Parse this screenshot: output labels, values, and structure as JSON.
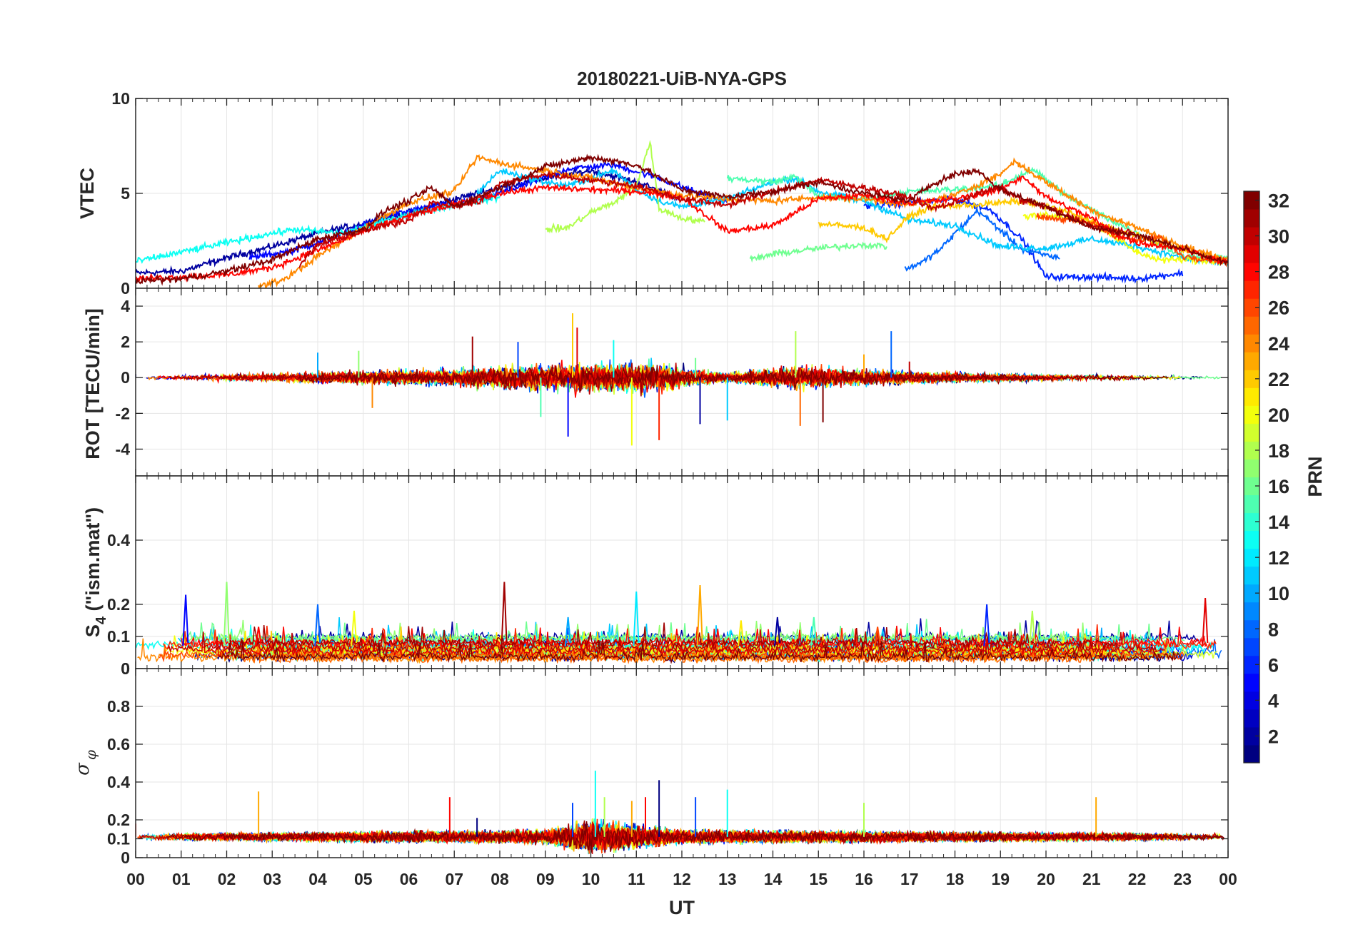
{
  "chart_data": {
    "type": "line",
    "title": "20180221-UiB-NYA-GPS",
    "xlabel": "UT",
    "x_unit": "hour",
    "xlim": [
      0,
      24
    ],
    "x_ticks": [
      0,
      1,
      2,
      3,
      4,
      5,
      6,
      7,
      8,
      9,
      10,
      11,
      12,
      13,
      14,
      15,
      16,
      17,
      18,
      19,
      20,
      21,
      22,
      23,
      24
    ],
    "x_tick_labels": [
      "00",
      "01",
      "02",
      "03",
      "04",
      "05",
      "06",
      "07",
      "08",
      "09",
      "10",
      "11",
      "12",
      "13",
      "14",
      "15",
      "16",
      "17",
      "18",
      "19",
      "20",
      "21",
      "22",
      "23",
      "00"
    ],
    "grid": true,
    "colorbar": {
      "label": "PRN",
      "range": [
        1,
        32
      ],
      "ticks": [
        2,
        4,
        6,
        8,
        10,
        12,
        14,
        16,
        18,
        20,
        22,
        24,
        26,
        28,
        30,
        32
      ],
      "tick_labels": [
        "2",
        "4",
        "6",
        "8",
        "10",
        "12",
        "14",
        "16",
        "18",
        "20",
        "22",
        "24",
        "26",
        "28",
        "30",
        "32"
      ],
      "colormap": "jet",
      "colors": [
        "#00008f",
        "#0000ff",
        "#0080ff",
        "#00ffff",
        "#80ff80",
        "#ffff00",
        "#ff8000",
        "#ff0000",
        "#800000"
      ],
      "position": "right"
    },
    "panels": [
      {
        "name": "vtec",
        "ylabel": "VTEC",
        "ylim": [
          0,
          10
        ],
        "yticks": [
          0,
          5,
          10
        ],
        "ytick_labels": [
          "0",
          "5",
          "10"
        ],
        "series": [
          {
            "prn": 2,
            "x": [
              0.0,
              1.0,
              2.0,
              3.0,
              4.0,
              5.0,
              6.0,
              7.0,
              8.0,
              9.0,
              10.0,
              11.0,
              12.0
            ],
            "y": [
              0.8,
              0.9,
              1.6,
              2.2,
              2.9,
              3.4,
              4.0,
              4.7,
              5.3,
              5.8,
              6.2,
              5.6,
              4.7
            ]
          },
          {
            "prn": 5,
            "x": [
              2.5,
              3.5,
              4.5,
              5.5,
              6.5,
              7.5,
              8.5,
              9.5,
              10.5,
              11.5,
              12.5,
              13.0
            ],
            "y": [
              1.6,
              2.0,
              2.8,
              3.8,
              4.3,
              4.6,
              5.4,
              6.3,
              6.5,
              5.8,
              4.9,
              4.6
            ]
          },
          {
            "prn": 6,
            "x": [
              16.0,
              17.0,
              18.0,
              18.8,
              19.5,
              20.0,
              21.0,
              22.0,
              23.0
            ],
            "y": [
              4.3,
              4.5,
              4.7,
              4.1,
              2.5,
              0.6,
              0.6,
              0.5,
              0.8
            ]
          },
          {
            "prn": 8,
            "x": [
              16.9,
              17.3,
              17.7,
              18.0,
              18.5,
              19.5,
              20.3
            ],
            "y": [
              1.0,
              1.4,
              2.1,
              2.9,
              4.1,
              2.0,
              1.6
            ]
          },
          {
            "prn": 11,
            "x": [
              7.5,
              8.0,
              8.5,
              9.0,
              9.5,
              10.0,
              10.5,
              11.0,
              11.5,
              12.0,
              13.0,
              14.0,
              14.5,
              15.0,
              16.0,
              17.0,
              18.0,
              19.0,
              20.0,
              21.0,
              22.0,
              23.0,
              24.0
            ],
            "y": [
              5.0,
              6.2,
              5.9,
              5.6,
              5.4,
              5.8,
              6.2,
              5.2,
              4.6,
              4.3,
              4.7,
              5.6,
              5.8,
              5.1,
              4.6,
              3.6,
              3.3,
              2.2,
              2.1,
              2.6,
              2.2,
              1.6,
              1.3
            ]
          },
          {
            "prn": 13,
            "x": [
              0.0,
              1.0,
              2.0,
              3.0,
              3.5,
              4.5,
              5.0,
              6.0,
              7.0,
              8.0
            ],
            "y": [
              1.4,
              1.9,
              2.4,
              2.9,
              3.1,
              2.9,
              3.2,
              3.9,
              4.4,
              4.8
            ]
          },
          {
            "prn": 15,
            "x": [
              13.0,
              14.0,
              14.5,
              15.0,
              16.0,
              17.0,
              18.0,
              19.0,
              19.7,
              20.5,
              21.5,
              23.0,
              24.0
            ],
            "y": [
              5.8,
              5.6,
              5.9,
              4.8,
              4.7,
              5.1,
              5.2,
              5.4,
              6.3,
              4.8,
              3.5,
              1.7,
              1.6
            ]
          },
          {
            "prn": 16,
            "x": [
              13.5,
              14.0,
              15.0,
              16.0,
              16.5
            ],
            "y": [
              1.5,
              1.8,
              2.1,
              2.3,
              2.2
            ]
          },
          {
            "prn": 18,
            "x": [
              9.0,
              9.5,
              10.0,
              10.5,
              11.0,
              11.3,
              11.5,
              12.0,
              12.5
            ],
            "y": [
              3.1,
              3.2,
              4.0,
              4.5,
              5.4,
              7.7,
              4.2,
              3.7,
              3.5
            ]
          },
          {
            "prn": 20,
            "x": [
              19.5,
              20.0,
              21.0,
              22.0,
              22.5,
              23.0,
              24.0
            ],
            "y": [
              3.8,
              3.9,
              3.5,
              1.9,
              1.5,
              1.5,
              1.4
            ]
          },
          {
            "prn": 22,
            "x": [
              15.0,
              16.0,
              16.5,
              17.0,
              17.5,
              18.5,
              19.5,
              20.5,
              21.5,
              22.5,
              23.5,
              24.0
            ],
            "y": [
              3.4,
              3.2,
              2.6,
              3.8,
              4.3,
              4.4,
              4.6,
              4.0,
              3.1,
              2.4,
              1.7,
              1.4
            ]
          },
          {
            "prn": 24,
            "x": [
              2.7,
              3.2,
              3.6,
              4.0,
              4.5,
              5.0,
              6.0,
              7.0,
              7.5,
              8.0,
              9.0,
              10.0,
              11.0,
              12.0,
              13.0,
              14.0,
              15.0,
              16.0,
              17.0,
              18.0,
              19.0,
              19.3,
              20.0,
              21.0,
              22.0,
              23.0,
              24.0
            ],
            "y": [
              0.1,
              0.4,
              1.0,
              1.7,
              2.4,
              3.2,
              4.5,
              5.1,
              6.9,
              6.6,
              6.2,
              5.8,
              5.3,
              4.9,
              4.7,
              4.6,
              4.8,
              4.7,
              4.4,
              4.9,
              6.0,
              6.7,
              5.6,
              4.1,
              3.2,
              2.2,
              1.5
            ]
          },
          {
            "prn": 26,
            "x": [
              19.8,
              20.5,
              21.0,
              21.5,
              22.0,
              22.5,
              23.0,
              24.0
            ],
            "y": [
              3.8,
              3.6,
              3.4,
              2.8,
              2.5,
              2.7,
              1.7,
              1.4
            ]
          },
          {
            "prn": 28,
            "x": [
              0.0,
              1.0,
              2.0,
              3.0,
              4.0,
              5.0,
              6.0,
              7.0,
              8.0,
              9.0,
              10.0,
              11.0,
              12.0,
              13.0,
              14.0,
              15.0,
              16.0,
              17.0,
              18.0,
              19.0,
              19.5,
              20.0,
              21.0,
              21.5,
              22.0,
              23.0,
              24.0
            ],
            "y": [
              0.5,
              0.6,
              0.7,
              1.1,
              2.0,
              3.0,
              3.8,
              4.4,
              5.0,
              5.3,
              5.2,
              5.1,
              4.8,
              3.0,
              3.3,
              4.7,
              4.9,
              4.5,
              4.7,
              5.2,
              5.9,
              4.8,
              3.7,
              2.9,
              2.4,
              2.1,
              1.3
            ]
          },
          {
            "prn": 30,
            "x": [
              3.6,
              4.0,
              5.0,
              6.0,
              6.5,
              7.0,
              7.5,
              8.0,
              9.0,
              10.0,
              11.0,
              12.0,
              13.0,
              14.0,
              15.0,
              16.0,
              17.0,
              17.5,
              18.0,
              18.5,
              19.0,
              19.5,
              20.0,
              21.0,
              22.0
            ],
            "y": [
              1.2,
              2.3,
              3.0,
              3.6,
              4.5,
              4.3,
              4.5,
              5.5,
              6.0,
              5.7,
              5.4,
              4.7,
              4.4,
              5.1,
              5.7,
              5.3,
              4.8,
              4.2,
              4.5,
              5.0,
              5.3,
              4.6,
              4.3,
              3.3,
              2.8
            ]
          },
          {
            "prn": 32,
            "x": [
              0.0,
              1.0,
              2.0,
              3.0,
              4.0,
              5.0,
              5.5,
              6.0,
              6.5,
              7.0,
              8.0,
              9.0,
              10.0,
              11.0,
              12.0,
              13.0,
              14.0,
              15.0,
              16.0,
              17.0,
              17.5,
              18.0,
              18.5,
              19.0,
              20.0,
              21.0,
              22.0,
              23.0,
              24.0
            ],
            "y": [
              0.4,
              0.5,
              0.9,
              1.5,
              2.6,
              3.1,
              4.1,
              4.6,
              5.3,
              4.3,
              5.3,
              6.4,
              6.9,
              6.5,
              5.2,
              4.8,
              5.1,
              5.6,
              5.0,
              4.6,
              5.5,
              6.0,
              6.2,
              5.2,
              4.3,
              3.2,
              2.8,
              2.1,
              1.3
            ]
          }
        ]
      },
      {
        "name": "rot",
        "ylabel": "ROT [TECU/min]",
        "ylim": [
          -5.5,
          5
        ],
        "yticks": [
          -4,
          -2,
          0,
          2,
          4
        ],
        "ytick_labels": [
          "-4",
          "-2",
          "0",
          "2",
          "4"
        ],
        "noise_amplitude": [
          [
            0,
            0.1
          ],
          [
            4,
            0.4
          ],
          [
            7,
            0.6
          ],
          [
            9.5,
            1.0
          ],
          [
            11.5,
            1.0
          ],
          [
            13,
            0.3
          ],
          [
            14.5,
            0.8
          ],
          [
            16.5,
            0.5
          ],
          [
            18.5,
            0.3
          ],
          [
            24,
            0.1
          ]
        ],
        "spikes": [
          [
            0.0,
            0.2
          ],
          [
            4.0,
            1.4
          ],
          [
            4.9,
            1.5
          ],
          [
            5.2,
            -1.7
          ],
          [
            7.4,
            2.3
          ],
          [
            8.4,
            2.0
          ],
          [
            8.9,
            -2.2
          ],
          [
            9.6,
            3.6
          ],
          [
            9.7,
            2.8
          ],
          [
            9.5,
            -3.3
          ],
          [
            10.5,
            2.1
          ],
          [
            10.9,
            -3.8
          ],
          [
            11.5,
            -3.5
          ],
          [
            12.4,
            -2.6
          ],
          [
            13.0,
            -2.4
          ],
          [
            14.5,
            2.6
          ],
          [
            14.6,
            -2.7
          ],
          [
            15.1,
            -2.5
          ],
          [
            16.6,
            2.6
          ],
          [
            12.3,
            1.1
          ],
          [
            16.0,
            1.3
          ],
          [
            17.0,
            0.9
          ]
        ]
      },
      {
        "name": "s4",
        "ylabel": "S4 (\"ism.mat\")",
        "ylabel_main": "S",
        "ylabel_sub": "4",
        "ylabel_rest": " (\"ism.mat\")",
        "ylim": [
          0,
          0.6
        ],
        "yticks": [
          0,
          0.1,
          0.2,
          0.4
        ],
        "ytick_labels": [
          "0",
          "0.1",
          "0.2",
          "0.4"
        ],
        "extra_ytick_label": "0",
        "baseline_range": [
          0.03,
          0.1
        ],
        "spikes": [
          [
            1.1,
            0.23
          ],
          [
            2.0,
            0.27
          ],
          [
            2.7,
            0.13
          ],
          [
            4.0,
            0.2
          ],
          [
            4.8,
            0.18
          ],
          [
            8.1,
            0.27
          ],
          [
            11.0,
            0.24
          ],
          [
            12.4,
            0.26
          ],
          [
            14.1,
            0.16
          ],
          [
            14.9,
            0.16
          ],
          [
            16.3,
            0.13
          ],
          [
            18.7,
            0.2
          ],
          [
            19.7,
            0.18
          ],
          [
            23.5,
            0.22
          ],
          [
            9.5,
            0.16
          ],
          [
            13.3,
            0.15
          ]
        ]
      },
      {
        "name": "sigma_phi",
        "ylabel": "σ φ",
        "ylabel_main": "σ",
        "ylabel_sub": "φ",
        "ylim": [
          0,
          1
        ],
        "yticks": [
          0,
          0.1,
          0.2,
          0.4,
          0.6,
          0.8
        ],
        "ytick_labels": [
          "0",
          "0.1",
          "0.2",
          "0.4",
          "0.6",
          "0.8"
        ],
        "baseline": 0.11,
        "noise_amplitude": [
          [
            0,
            0.02
          ],
          [
            9,
            0.05
          ],
          [
            10,
            0.12
          ],
          [
            12,
            0.05
          ],
          [
            24,
            0.02
          ]
        ],
        "spikes": [
          [
            2.7,
            0.35
          ],
          [
            6.9,
            0.32
          ],
          [
            7.5,
            0.21
          ],
          [
            9.6,
            0.29
          ],
          [
            10.1,
            0.46
          ],
          [
            10.3,
            0.32
          ],
          [
            10.9,
            0.3
          ],
          [
            11.2,
            0.32
          ],
          [
            11.5,
            0.41
          ],
          [
            12.3,
            0.32
          ],
          [
            13.0,
            0.36
          ],
          [
            16.0,
            0.29
          ],
          [
            21.1,
            0.32
          ],
          [
            0.0,
            0.18
          ]
        ]
      }
    ]
  }
}
